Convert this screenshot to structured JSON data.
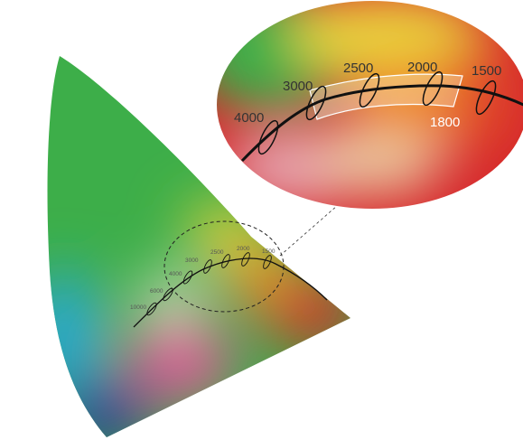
{
  "diagram": {
    "main_labels": [
      "10000",
      "6000",
      "4000",
      "3000",
      "2500",
      "2000",
      "1500"
    ],
    "zoom_labels": [
      "4000",
      "3000",
      "2500",
      "2000",
      "1500"
    ],
    "zoom_highlight_label": "1800",
    "colors": {
      "green": "#3dae49",
      "cyan": "#29a7d6",
      "blue": "#2c3d96",
      "magenta": "#e0589a",
      "red": "#d6282c",
      "orange": "#ee8a2b",
      "yellow": "#e9d43c",
      "curve": "#111111"
    }
  }
}
